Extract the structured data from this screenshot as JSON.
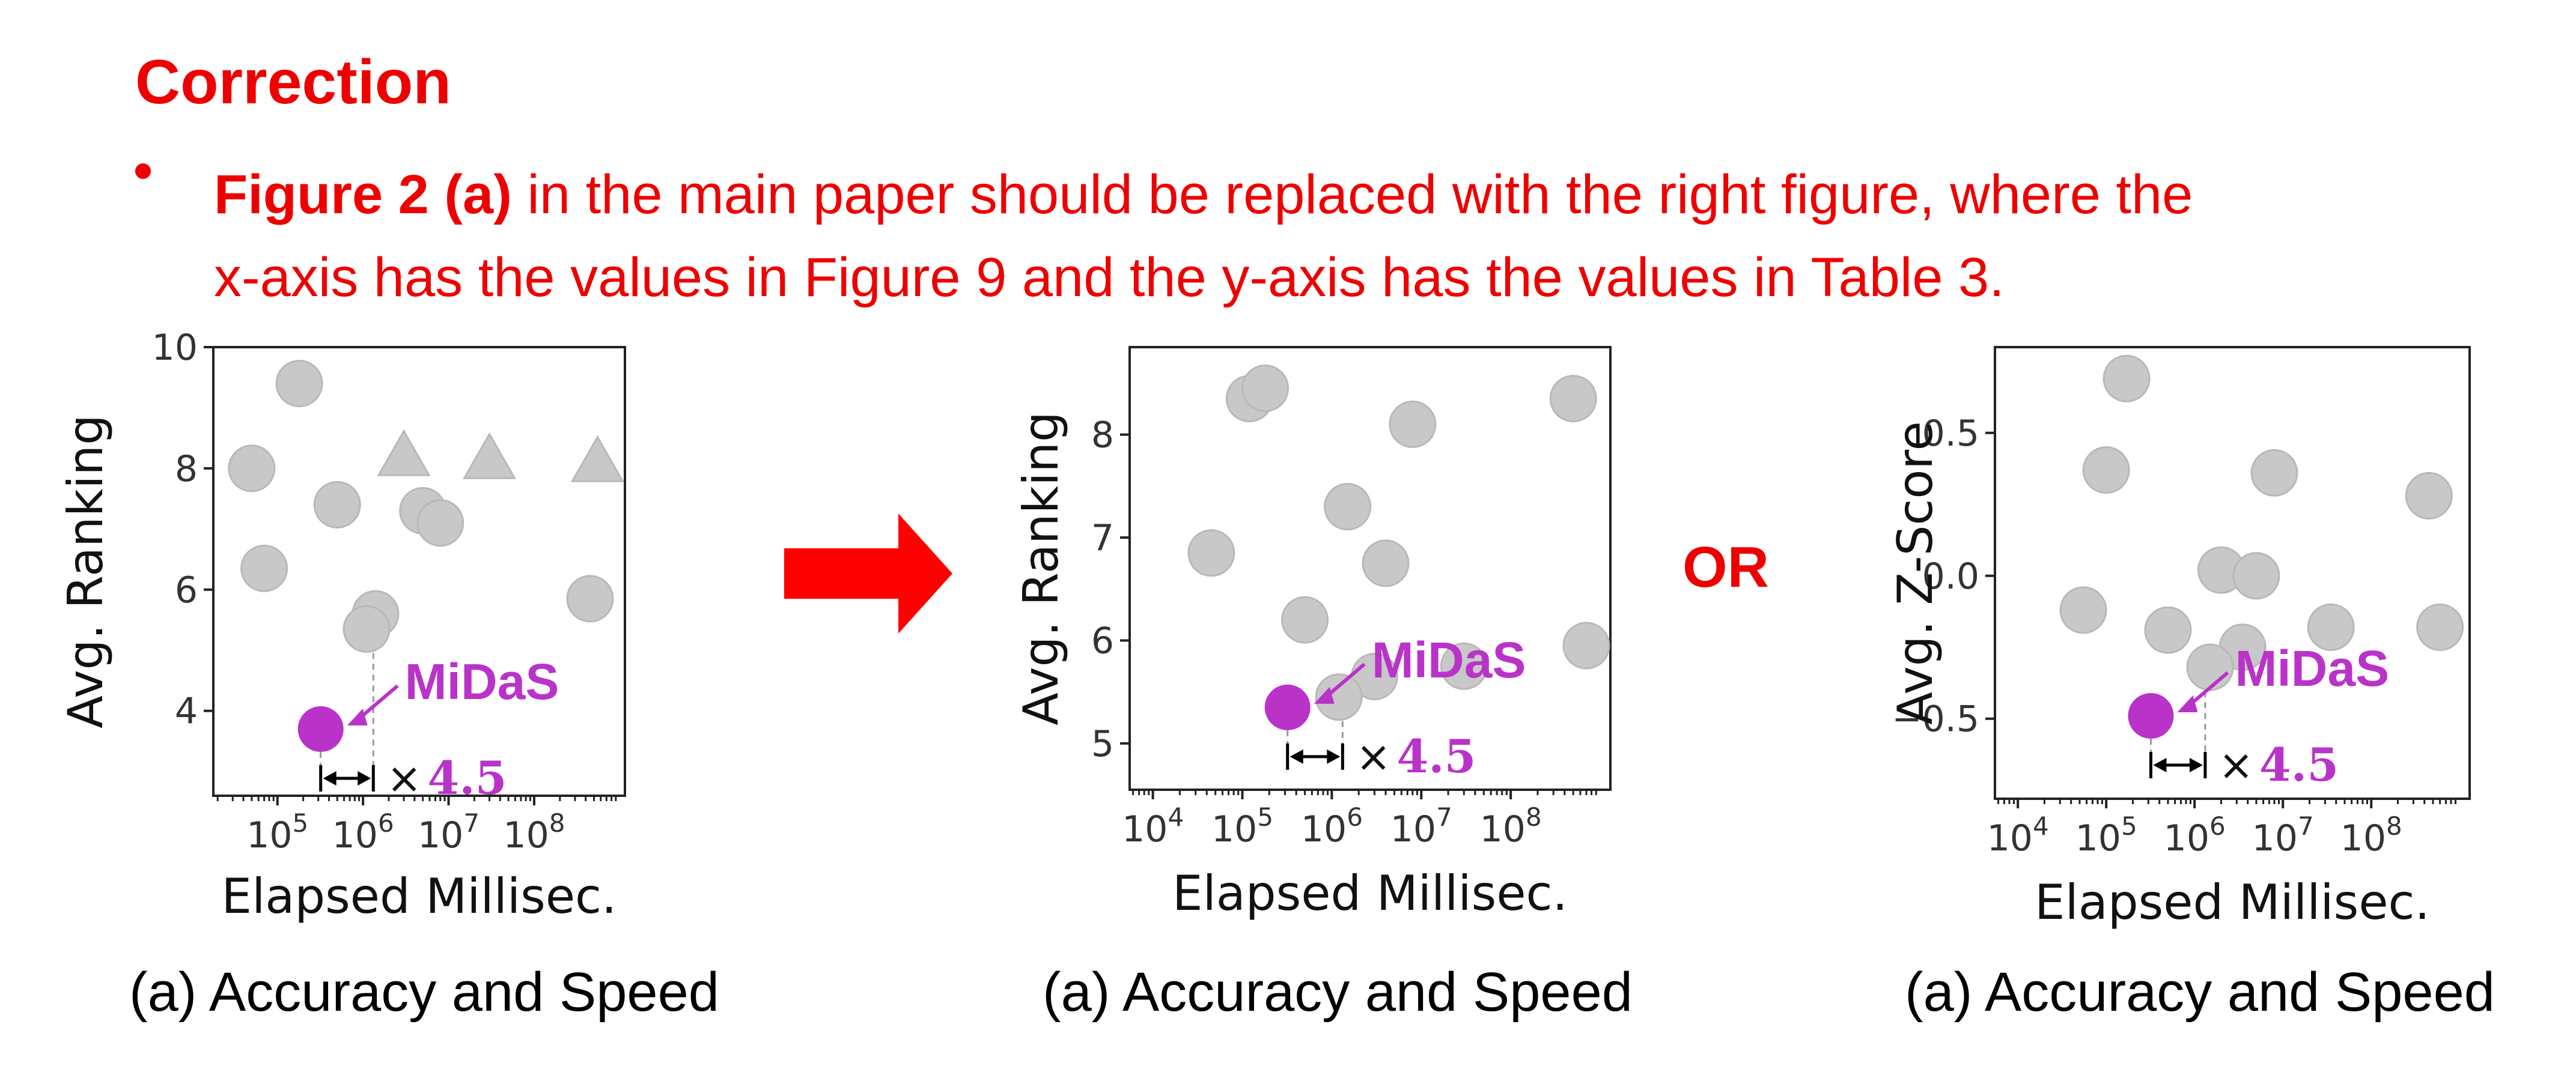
{
  "slide": {
    "heading": "Correction",
    "bullet_bold": "Figure 2 (a)",
    "bullet_line1": " in the main paper should be replaced with the right figure, where the",
    "bullet_line2": "x-axis has the values in Figure 9 and the y-axis has the values in Table 3.",
    "or_label": "OR",
    "accent_color": "#ee0000",
    "midas_color": "#b933c9",
    "point_color": "#c8c8c8"
  },
  "chart_data": [
    {
      "type": "scatter",
      "caption": "(a) Accuracy and Speed",
      "xlabel": "Elapsed Millisec.",
      "ylabel": "Avg. Ranking",
      "xscale": "log",
      "xlim": [
        17800.0,
        1150000000.0
      ],
      "ylim": [
        2.6,
        10.0
      ],
      "xticks": [
        100000,
        1000000,
        10000000,
        100000000
      ],
      "xtick_labels": [
        "10^5",
        "10^6",
        "10^7",
        "10^8"
      ],
      "yticks": [
        4,
        6,
        8,
        10
      ],
      "ytick_labels": [
        "4",
        "6",
        "8",
        "10"
      ],
      "series": [
        {
          "marker": "circle",
          "points": [
            {
              "x": 180000,
              "y": 9.4
            },
            {
              "x": 50000,
              "y": 8.0
            },
            {
              "x": 500000,
              "y": 7.4
            },
            {
              "x": 5000000,
              "y": 7.3
            },
            {
              "x": 8000000,
              "y": 7.1
            },
            {
              "x": 70000,
              "y": 6.35
            },
            {
              "x": 1400000,
              "y": 5.6
            },
            {
              "x": 1100000,
              "y": 5.35
            },
            {
              "x": 450000000,
              "y": 5.85
            }
          ]
        },
        {
          "marker": "triangle",
          "points": [
            {
              "x": 3000000,
              "y": 8.2
            },
            {
              "x": 30000000,
              "y": 8.15
            },
            {
              "x": 550000000,
              "y": 8.1
            }
          ]
        },
        {
          "name": "MiDaS",
          "marker": "circle",
          "points": [
            {
              "x": 320000,
              "y": 3.7
            }
          ]
        }
      ],
      "annotations": {
        "label": "MiDaS",
        "speedup_symbol": "×",
        "speedup_value": "4.5",
        "ref_x": 1320000,
        "ref_y": 5.35
      }
    },
    {
      "type": "scatter",
      "caption": "(a) Accuracy and Speed",
      "xlabel": "Elapsed Millisec.",
      "ylabel": "Avg. Ranking",
      "xscale": "log",
      "xlim": [
        5500,
        1300000000.0
      ],
      "ylim": [
        4.55,
        8.85
      ],
      "xticks": [
        10000,
        100000,
        1000000,
        10000000,
        100000000
      ],
      "xtick_labels": [
        "10^4",
        "10^5",
        "10^6",
        "10^7",
        "10^8"
      ],
      "yticks": [
        5,
        6,
        7,
        8
      ],
      "ytick_labels": [
        "5",
        "6",
        "7",
        "8"
      ],
      "series": [
        {
          "marker": "circle",
          "points": [
            {
              "x": 120000,
              "y": 8.35
            },
            {
              "x": 180000,
              "y": 8.45
            },
            {
              "x": 500000000,
              "y": 8.35
            },
            {
              "x": 8000000,
              "y": 8.1
            },
            {
              "x": 1500000,
              "y": 7.3
            },
            {
              "x": 45000,
              "y": 6.85
            },
            {
              "x": 4000000,
              "y": 6.75
            },
            {
              "x": 500000,
              "y": 6.2
            },
            {
              "x": 700000000,
              "y": 5.95
            },
            {
              "x": 30000000,
              "y": 5.75
            },
            {
              "x": 3000000,
              "y": 5.65
            },
            {
              "x": 1200000,
              "y": 5.45
            }
          ]
        },
        {
          "name": "MiDaS",
          "marker": "circle",
          "points": [
            {
              "x": 320000,
              "y": 5.35
            }
          ]
        }
      ],
      "annotations": {
        "label": "MiDaS",
        "speedup_symbol": "×",
        "speedup_value": "4.5",
        "ref_x": 1320000,
        "ref_y": 5.45
      }
    },
    {
      "type": "scatter",
      "caption": "(a) Accuracy and Speed",
      "xlabel": "Elapsed Millisec.",
      "ylabel": "Avg. Z-Score",
      "xscale": "log",
      "xlim": [
        5500,
        1300000000.0
      ],
      "ylim": [
        -0.78,
        0.8
      ],
      "xticks": [
        10000,
        100000,
        1000000,
        10000000,
        100000000
      ],
      "xtick_labels": [
        "10^4",
        "10^5",
        "10^6",
        "10^7",
        "10^8"
      ],
      "yticks": [
        0.5,
        0.0,
        -0.5
      ],
      "ytick_labels": [
        "0.5",
        "0.0",
        "−0.5"
      ],
      "series": [
        {
          "marker": "circle",
          "points": [
            {
              "x": 170000,
              "y": 0.69
            },
            {
              "x": 100000,
              "y": 0.37
            },
            {
              "x": 8000000,
              "y": 0.36
            },
            {
              "x": 450000000,
              "y": 0.28
            },
            {
              "x": 2000000,
              "y": 0.02
            },
            {
              "x": 5000000,
              "y": 0.0
            },
            {
              "x": 55000,
              "y": -0.12
            },
            {
              "x": 500000,
              "y": -0.19
            },
            {
              "x": 35000000,
              "y": -0.18
            },
            {
              "x": 600000000,
              "y": -0.18
            },
            {
              "x": 3500000,
              "y": -0.25
            },
            {
              "x": 1500000,
              "y": -0.32
            }
          ]
        },
        {
          "name": "MiDaS",
          "marker": "circle",
          "points": [
            {
              "x": 320000,
              "y": -0.49
            }
          ]
        }
      ],
      "annotations": {
        "label": "MiDaS",
        "speedup_symbol": "×",
        "speedup_value": "4.5",
        "ref_x": 1320000,
        "ref_y": -0.32
      }
    }
  ]
}
